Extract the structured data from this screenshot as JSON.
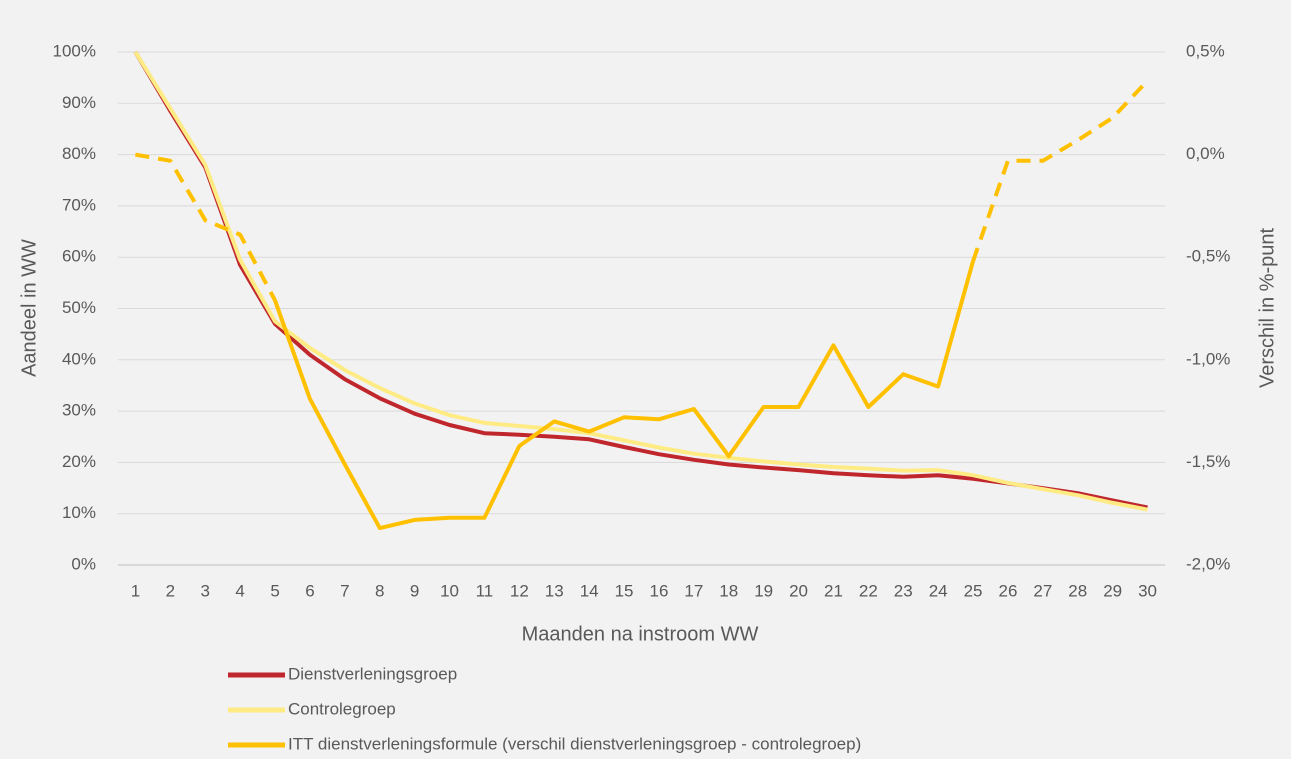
{
  "chart_data": {
    "type": "line",
    "xlabel": "Maanden na instroom WW",
    "ylabel": "Aandeel in WW",
    "y2label": "Verschil in %-punt",
    "categories": [
      "1",
      "2",
      "3",
      "4",
      "5",
      "6",
      "7",
      "8",
      "9",
      "10",
      "11",
      "12",
      "13",
      "14",
      "15",
      "16",
      "17",
      "18",
      "19",
      "20",
      "21",
      "22",
      "23",
      "24",
      "25",
      "26",
      "27",
      "28",
      "29",
      "30"
    ],
    "ylim": [
      0,
      100
    ],
    "yticks": [
      {
        "value": 0,
        "label": "0%"
      },
      {
        "value": 10,
        "label": "10%"
      },
      {
        "value": 20,
        "label": "20%"
      },
      {
        "value": 30,
        "label": "30%"
      },
      {
        "value": 40,
        "label": "40%"
      },
      {
        "value": 50,
        "label": "50%"
      },
      {
        "value": 60,
        "label": "60%"
      },
      {
        "value": 70,
        "label": "70%"
      },
      {
        "value": 80,
        "label": "80%"
      },
      {
        "value": 90,
        "label": "90%"
      },
      {
        "value": 100,
        "label": "100%"
      }
    ],
    "y2lim": [
      -2.0,
      0.5
    ],
    "y2ticks": [
      {
        "value": -2.0,
        "label": "-2,0%"
      },
      {
        "value": -1.5,
        "label": "-1,5%"
      },
      {
        "value": -1.0,
        "label": "-1,0%"
      },
      {
        "value": -0.5,
        "label": "-0,5%"
      },
      {
        "value": 0.0,
        "label": "0,0%"
      },
      {
        "value": 0.5,
        "label": "0,5%"
      }
    ],
    "grid": true,
    "legend": "bottom",
    "series": [
      {
        "name": "Dienstverleningsgroep",
        "color": "#c0272d",
        "values": [
          100,
          88.5,
          77.5,
          58.5,
          47,
          41,
          36.2,
          32.5,
          29.5,
          27.3,
          25.7,
          25.4,
          25,
          24.5,
          23,
          21.6,
          20.5,
          19.6,
          19,
          18.5,
          17.9,
          17.5,
          17.2,
          17.5,
          16.8,
          15.9,
          15,
          14,
          12.6,
          11.2
        ]
      },
      {
        "name": "Controlegroep",
        "color": "#ffeb84",
        "values": [
          100,
          89,
          78,
          59.5,
          47.5,
          42.3,
          38,
          34.5,
          31.5,
          29.2,
          27.7,
          27.1,
          26.5,
          25.7,
          24.3,
          22.9,
          21.7,
          20.9,
          20.2,
          19.6,
          19.1,
          18.8,
          18.4,
          18.5,
          17.5,
          16,
          14.8,
          13.6,
          12.1,
          10.8
        ]
      },
      {
        "name": "ITT dienstverleningsformule (verschil dienstverleningsgroep - controlegroep)",
        "color": "#ffc000",
        "axis": "y2",
        "dashed_segments": [
          [
            "1",
            "5"
          ],
          [
            "25",
            "30"
          ]
        ],
        "values": [
          0.0,
          -0.03,
          -0.32,
          -0.39,
          -0.71,
          -1.19,
          -1.51,
          -1.82,
          -1.78,
          -1.77,
          -1.77,
          -1.42,
          -1.3,
          -1.35,
          -1.28,
          -1.29,
          -1.24,
          -1.47,
          -1.23,
          -1.23,
          -0.93,
          -1.23,
          -1.07,
          -1.13,
          -0.52,
          -0.03,
          -0.03,
          0.07,
          0.18,
          0.36
        ]
      }
    ]
  }
}
